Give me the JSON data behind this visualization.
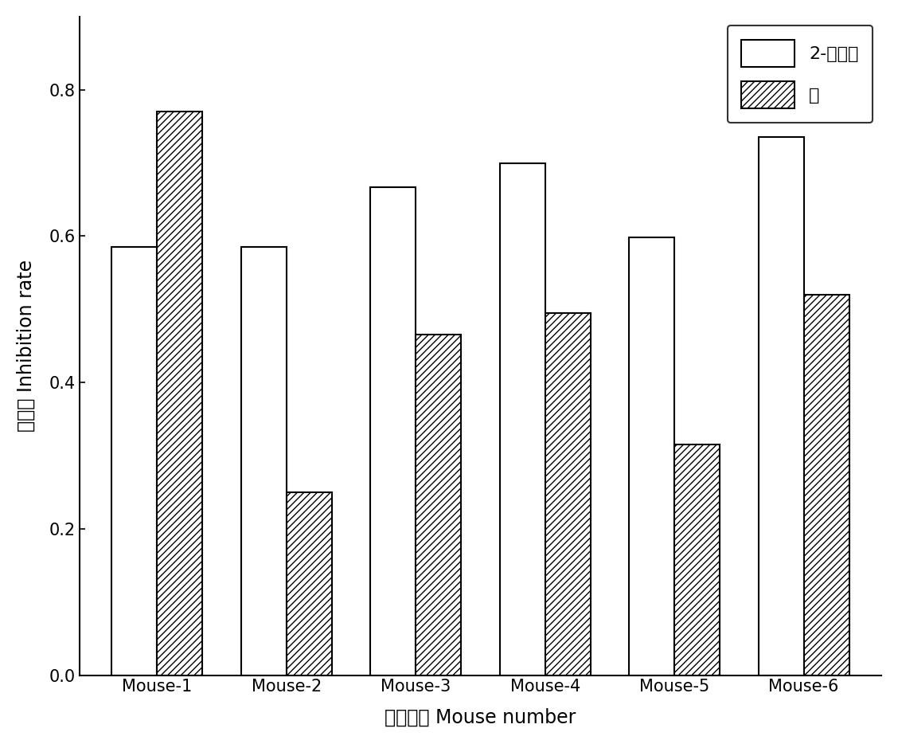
{
  "categories": [
    "Mouse-1",
    "Mouse-2",
    "Mouse-3",
    "Mouse-4",
    "Mouse-5",
    "Mouse-6"
  ],
  "values_2_naphthylbutyric": [
    0.585,
    0.585,
    0.667,
    0.7,
    0.598,
    0.735
  ],
  "values_naphthalene": [
    0.77,
    0.25,
    0.465,
    0.495,
    0.315,
    0.52
  ],
  "legend_label_1": "2-萊丁酸",
  "legend_label_2": "萊",
  "xlabel_cn": "小鼠编号",
  "xlabel_en": "Mouse number",
  "ylabel_cn": "抑制率",
  "ylabel_en": "Inhibition rate",
  "ylim": [
    0.0,
    0.9
  ],
  "yticks": [
    0.0,
    0.2,
    0.4,
    0.6,
    0.8
  ],
  "bar_width": 0.35,
  "background_color": "#ffffff",
  "hatch_pattern": "////",
  "edge_color": "#000000",
  "axis_label_fontsize": 17,
  "tick_fontsize": 15,
  "legend_fontsize": 16
}
